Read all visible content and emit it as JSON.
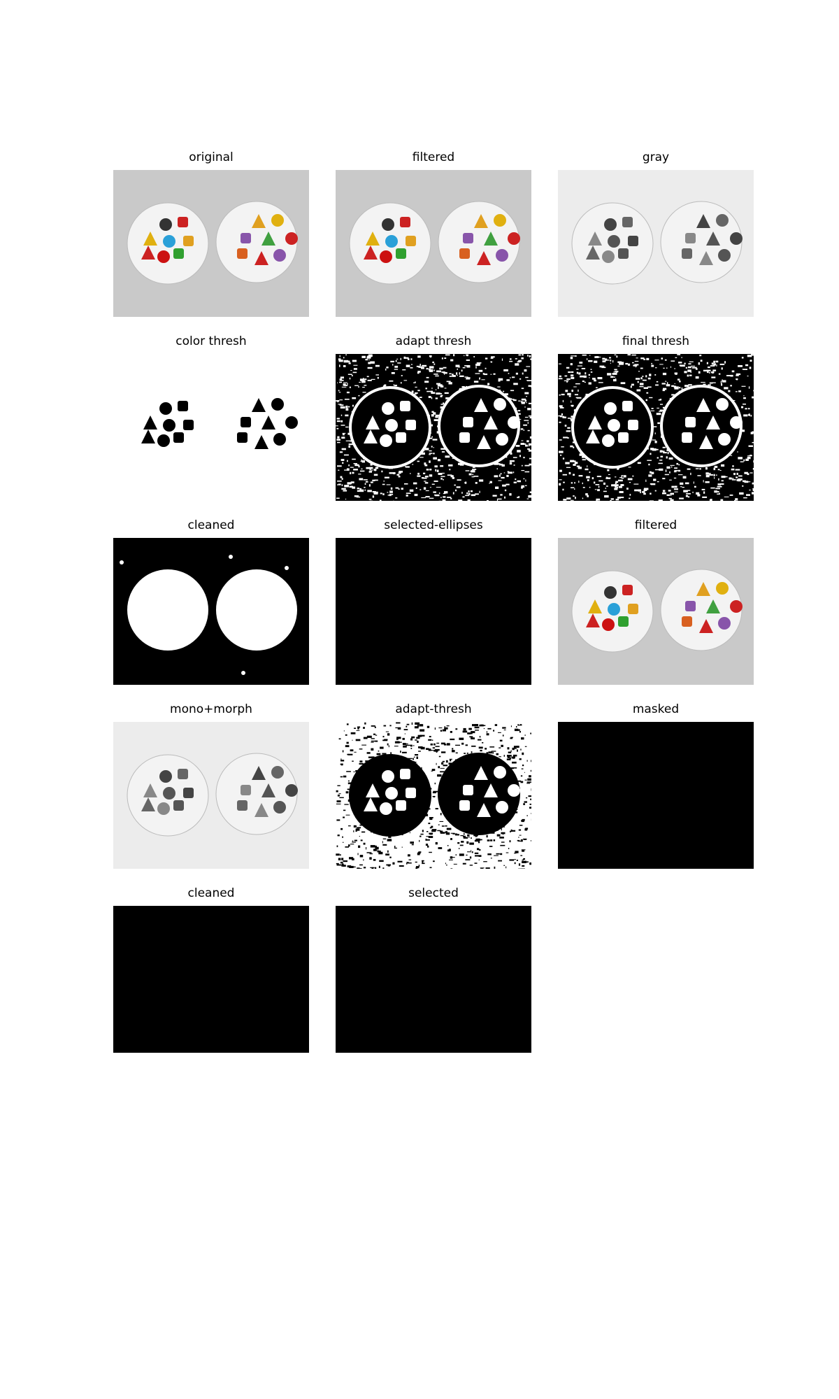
{
  "panels": [
    {
      "title": "original",
      "style": "color"
    },
    {
      "title": "filtered",
      "style": "color"
    },
    {
      "title": "gray",
      "style": "gray"
    },
    {
      "title": "color thresh",
      "style": "colorthresh"
    },
    {
      "title": "adapt thresh",
      "style": "adapt"
    },
    {
      "title": "final thresh",
      "style": "final"
    },
    {
      "title": "cleaned",
      "style": "cleaned"
    },
    {
      "title": "selected-ellipses",
      "style": "black"
    },
    {
      "title": "filtered",
      "style": "filtered-alt"
    },
    {
      "title": "mono+morph",
      "style": "gray"
    },
    {
      "title": "adapt-thresh",
      "style": "adapt2"
    },
    {
      "title": "masked",
      "style": "black"
    },
    {
      "title": "cleaned",
      "style": "black"
    },
    {
      "title": "selected",
      "style": "black"
    }
  ],
  "colors": {
    "paper": "#c9c9c9",
    "card": "#eeeeee",
    "black": "#000000",
    "white": "#ffffff"
  }
}
